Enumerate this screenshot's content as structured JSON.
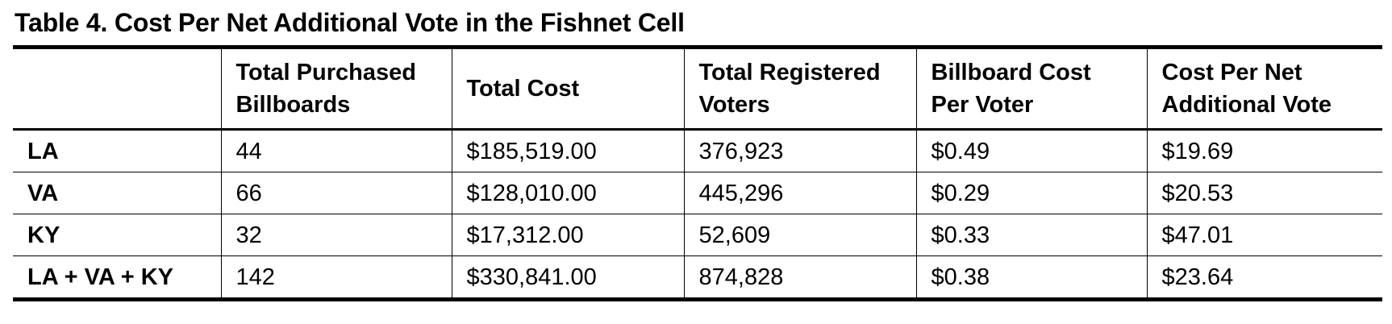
{
  "title": "Table 4. Cost Per Net Additional Vote in the Fishnet Cell",
  "columns": [
    "",
    "Total Purchased Billboards",
    "Total Cost",
    "Total Registered Voters",
    "Billboard Cost Per Voter",
    "Cost Per Net Additional Vote"
  ],
  "rows": [
    {
      "label": "LA",
      "billboards": "44",
      "total_cost": "$185,519.00",
      "registered_voters": "376,923",
      "cost_per_voter": "$0.49",
      "cost_per_net_vote": "$19.69"
    },
    {
      "label": "VA",
      "billboards": "66",
      "total_cost": "$128,010.00",
      "registered_voters": "445,296",
      "cost_per_voter": "$0.29",
      "cost_per_net_vote": "$20.53"
    },
    {
      "label": "KY",
      "billboards": "32",
      "total_cost": "$17,312.00",
      "registered_voters": "52,609",
      "cost_per_voter": "$0.33",
      "cost_per_net_vote": "$47.01"
    },
    {
      "label": "LA + VA + KY",
      "billboards": "142",
      "total_cost": "$330,841.00",
      "registered_voters": "874,828",
      "cost_per_voter": "$0.38",
      "cost_per_net_vote": "$23.64"
    }
  ]
}
